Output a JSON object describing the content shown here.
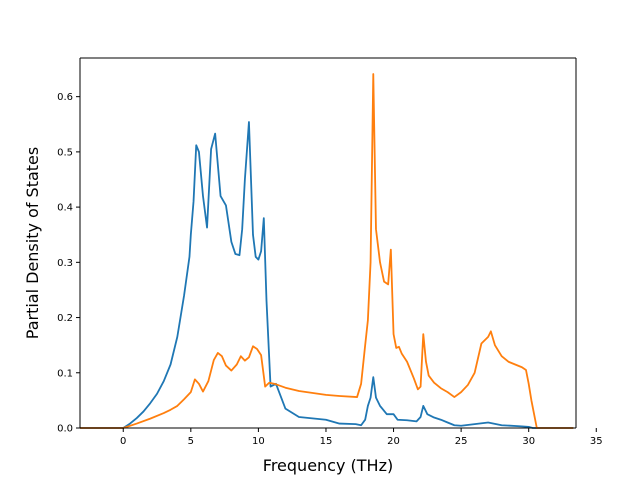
{
  "chart_data": {
    "type": "line",
    "title": "",
    "xlabel": "Frequency (THz)",
    "ylabel": "Partial Density of States",
    "xlim": [
      -3.2,
      33.5
    ],
    "ylim": [
      0.0,
      0.67
    ],
    "xticks": [
      0,
      5,
      10,
      15,
      20,
      25,
      30,
      35
    ],
    "xtick_labels": [
      "0",
      "5",
      "10",
      "15",
      "20",
      "25",
      "30",
      "35"
    ],
    "yticks": [
      0.0,
      0.1,
      0.2,
      0.3,
      0.4,
      0.5,
      0.6
    ],
    "ytick_labels": [
      "0.0",
      "0.1",
      "0.2",
      "0.3",
      "0.4",
      "0.5",
      "0.6"
    ],
    "grid": false,
    "legend": "none",
    "series": [
      {
        "color": "#1f77b4",
        "x": [
          -3.2,
          0,
          0.5,
          1,
          1.5,
          2,
          2.5,
          3,
          3.5,
          4,
          4.5,
          4.9,
          5.0,
          5.2,
          5.4,
          5.6,
          5.9,
          6.2,
          6.5,
          6.8,
          7.2,
          7.6,
          8.0,
          8.3,
          8.6,
          8.8,
          9.0,
          9.3,
          9.6,
          9.8,
          10.0,
          10.2,
          10.4,
          10.6,
          10.9,
          11.3,
          12,
          13,
          15,
          16,
          17.2,
          17.6,
          17.9,
          18.1,
          18.3,
          18.5,
          18.7,
          19.0,
          19.5,
          20.0,
          20.3,
          21.0,
          21.7,
          22.0,
          22.2,
          22.5,
          23.0,
          23.5,
          24.0,
          24.5,
          25.0,
          26.0,
          27.0,
          28.0,
          29.5,
          30.0,
          30.3,
          33.3
        ],
        "y": [
          0.0,
          0.0,
          0.008,
          0.018,
          0.03,
          0.045,
          0.062,
          0.085,
          0.115,
          0.165,
          0.24,
          0.31,
          0.35,
          0.41,
          0.512,
          0.5,
          0.42,
          0.363,
          0.505,
          0.533,
          0.42,
          0.403,
          0.337,
          0.315,
          0.313,
          0.36,
          0.45,
          0.554,
          0.35,
          0.31,
          0.305,
          0.32,
          0.38,
          0.23,
          0.075,
          0.08,
          0.035,
          0.02,
          0.015,
          0.008,
          0.007,
          0.005,
          0.015,
          0.04,
          0.055,
          0.092,
          0.055,
          0.04,
          0.025,
          0.025,
          0.015,
          0.014,
          0.012,
          0.02,
          0.04,
          0.025,
          0.019,
          0.015,
          0.01,
          0.005,
          0.004,
          0.007,
          0.01,
          0.005,
          0.003,
          0.002,
          0.0,
          0.0
        ]
      },
      {
        "color": "#ff7f0e",
        "x": [
          -3.2,
          0,
          1,
          2,
          3,
          3.5,
          4,
          4.5,
          5,
          5.3,
          5.6,
          5.9,
          6.3,
          6.7,
          7.0,
          7.3,
          7.6,
          8.0,
          8.4,
          8.7,
          9.0,
          9.3,
          9.6,
          9.9,
          10.2,
          10.5,
          10.8,
          11.2,
          12,
          13,
          15,
          16,
          17.3,
          17.6,
          17.9,
          18.1,
          18.3,
          18.5,
          18.7,
          19.0,
          19.3,
          19.6,
          19.8,
          20.0,
          20.2,
          20.4,
          20.6,
          21.0,
          21.5,
          21.8,
          22.0,
          22.2,
          22.4,
          22.6,
          23.0,
          23.5,
          24.0,
          24.5,
          25.0,
          25.5,
          26.0,
          26.5,
          27.0,
          27.2,
          27.5,
          28.0,
          28.5,
          29.0,
          29.5,
          29.8,
          30.0,
          30.2,
          30.4,
          30.6,
          33.3
        ],
        "y": [
          0.0,
          0.0,
          0.008,
          0.017,
          0.027,
          0.033,
          0.04,
          0.052,
          0.065,
          0.088,
          0.08,
          0.066,
          0.085,
          0.123,
          0.136,
          0.13,
          0.113,
          0.104,
          0.115,
          0.13,
          0.122,
          0.128,
          0.148,
          0.143,
          0.132,
          0.075,
          0.082,
          0.08,
          0.073,
          0.067,
          0.06,
          0.058,
          0.056,
          0.08,
          0.15,
          0.195,
          0.3,
          0.641,
          0.36,
          0.3,
          0.265,
          0.26,
          0.323,
          0.17,
          0.145,
          0.147,
          0.135,
          0.12,
          0.09,
          0.07,
          0.075,
          0.17,
          0.12,
          0.095,
          0.082,
          0.072,
          0.065,
          0.056,
          0.065,
          0.078,
          0.1,
          0.153,
          0.165,
          0.175,
          0.15,
          0.13,
          0.12,
          0.115,
          0.11,
          0.105,
          0.08,
          0.05,
          0.025,
          0.0,
          0.0
        ]
      }
    ]
  }
}
